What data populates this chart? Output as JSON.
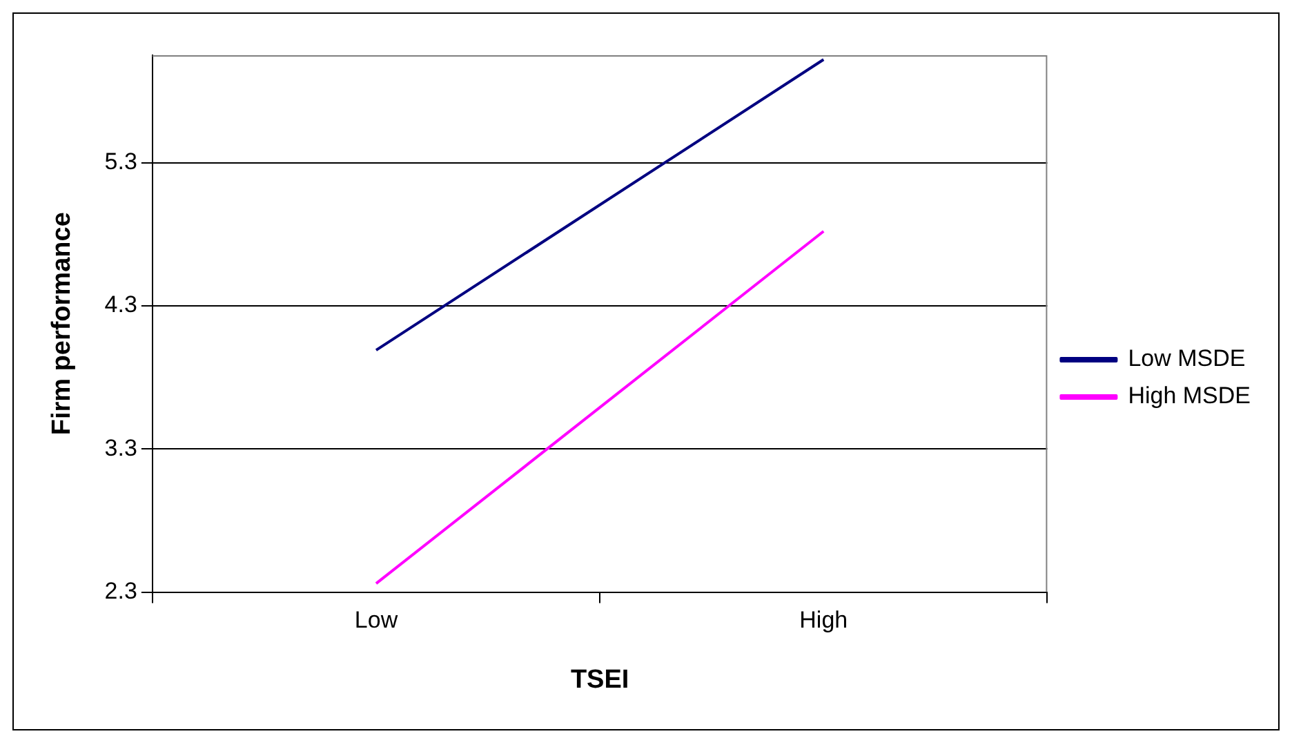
{
  "chart_data": {
    "type": "line",
    "xlabel": "TSEI",
    "ylabel": "Firm performance",
    "categories": [
      "Low",
      "High"
    ],
    "series": [
      {
        "name": "Low MSDE",
        "color": "#000080",
        "values": [
          3.99,
          6.02
        ]
      },
      {
        "name": "High MSDE",
        "color": "#ff00ff",
        "values": [
          2.36,
          4.82
        ]
      }
    ],
    "ylim": [
      2.3,
      6.05
    ],
    "yticks": [
      2.3,
      3.3,
      4.3,
      5.3
    ],
    "grid": "y",
    "legend": "right",
    "marker": "none",
    "line_style": "solid"
  }
}
